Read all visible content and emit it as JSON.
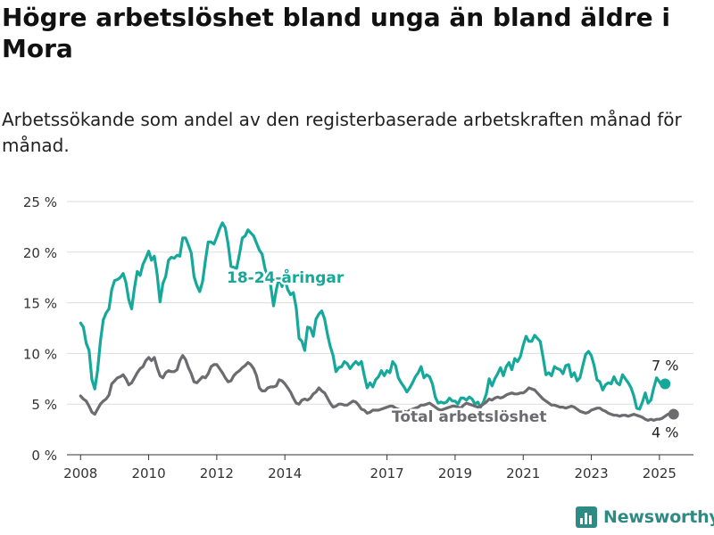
{
  "title": "Högre arbetslöshet bland unga än bland äldre i Mora",
  "subtitle": "Arbetssökande som andel av den registerbaserade arbetskraften månad för månad.",
  "brand": "Newsworthy",
  "colors": {
    "youth": "#16a89a",
    "total": "#6b6b70",
    "grid": "#dddddd",
    "brand": "#2e8b84"
  },
  "chart_data": {
    "type": "line",
    "x_start": "2008-01",
    "x_step": "month",
    "ylim": [
      0,
      25
    ],
    "yticks": [
      0,
      5,
      10,
      15,
      20,
      25
    ],
    "ytick_labels": [
      "0 %",
      "5 %",
      "10 %",
      "15 %",
      "20 %",
      "25 %"
    ],
    "xticks": [
      2008,
      2010,
      2012,
      2014,
      2017,
      2019,
      2021,
      2023,
      2025
    ],
    "xtick_labels": [
      "2008",
      "2010",
      "2012",
      "2014",
      "2017",
      "2019",
      "2021",
      "2023",
      "2025"
    ],
    "grid": true,
    "series": [
      {
        "name": "18-24-åringar",
        "end_label": "7 %",
        "values": [
          13,
          12.6,
          11,
          10.3,
          7.4,
          6.5,
          8.3,
          11.2,
          13.3,
          14,
          14.4,
          16.3,
          17.2,
          17.3,
          17.5,
          17.9,
          17,
          15.3,
          14.4,
          16.5,
          18.1,
          17.7,
          18.8,
          19.4,
          20.1,
          19.2,
          19.6,
          17.8,
          15.1,
          16.9,
          17.6,
          19.2,
          19.5,
          19.4,
          19.7,
          19.6,
          21.4,
          21.4,
          20.7,
          19.9,
          17.6,
          16.7,
          16.1,
          17.1,
          19.2,
          21,
          21,
          20.8,
          21.5,
          22.3,
          22.9,
          22.4,
          20.8,
          18.6,
          18.5,
          18.4,
          19.8,
          21.4,
          21.6,
          22.2,
          21.9,
          21.6,
          20.9,
          20.2,
          19.8,
          18.4,
          17.4,
          16.7,
          14.7,
          16.3,
          17.5,
          16.6,
          17.3,
          16.3,
          15.8,
          16,
          14.5,
          11.5,
          11.2,
          10.3,
          12.6,
          12.5,
          11.7,
          13.4,
          13.9,
          14.2,
          13.4,
          11.9,
          10.7,
          9.8,
          8.2,
          8.6,
          8.7,
          9.2,
          9,
          8.5,
          8.9,
          9.2,
          8.9,
          9.2,
          7.8,
          6.6,
          7.1,
          6.7,
          7.4,
          7.7,
          8.3,
          7.8,
          8.3,
          8.1,
          9.2,
          8.8,
          7.6,
          7.1,
          6.7,
          6.2,
          6.6,
          7.1,
          7.7,
          8.1,
          8.7,
          7.6,
          7.9,
          7.7,
          7,
          5.7,
          5.1,
          5.2,
          5.1,
          5.2,
          5.6,
          5.3,
          5.3,
          5,
          5.6,
          5.6,
          5.4,
          5.7,
          5.5,
          5,
          5.2,
          4.7,
          5.2,
          6,
          7.5,
          6.8,
          7.5,
          8,
          8.6,
          7.8,
          8.7,
          9.1,
          8.4,
          9.5,
          9.2,
          9.7,
          10.8,
          11.7,
          11.2,
          11.2,
          11.8,
          11.5,
          11.2,
          9.6,
          7.9,
          8.1,
          7.8,
          8.7,
          8.5,
          8.4,
          8,
          8.8,
          8.9,
          7.7,
          8.1,
          7.3,
          7.6,
          8.8,
          9.9,
          10.2,
          9.8,
          8.8,
          7.4,
          7.2,
          6.4,
          6.9,
          7.1,
          7,
          7.7,
          7.1,
          6.9,
          7.9,
          7.5,
          7.1,
          6.6,
          5.8,
          4.6,
          4.5,
          5.2,
          6.1,
          5.1,
          5.4,
          6.6,
          7.6,
          7.2,
          6.8,
          7
        ]
      },
      {
        "name": "Total arbetslöshet",
        "end_label": "4 %",
        "values": [
          5.8,
          5.5,
          5.3,
          4.8,
          4.2,
          4,
          4.5,
          5,
          5.3,
          5.5,
          5.9,
          7,
          7.3,
          7.6,
          7.7,
          7.9,
          7.5,
          6.9,
          7.1,
          7.6,
          8.1,
          8.5,
          8.7,
          9.3,
          9.6,
          9.3,
          9.6,
          8.6,
          7.8,
          7.6,
          8.1,
          8.3,
          8.2,
          8.2,
          8.4,
          9.3,
          9.8,
          9.4,
          8.6,
          8,
          7.2,
          7.1,
          7.4,
          7.7,
          7.6,
          8,
          8.7,
          8.9,
          8.9,
          8.5,
          8.1,
          7.6,
          7.2,
          7.3,
          7.8,
          8.1,
          8.3,
          8.6,
          8.8,
          9.1,
          8.9,
          8.5,
          7.8,
          6.6,
          6.3,
          6.3,
          6.6,
          6.7,
          6.7,
          6.8,
          7.4,
          7.3,
          7,
          6.6,
          6.2,
          5.6,
          5.1,
          5,
          5.4,
          5.5,
          5.4,
          5.6,
          6,
          6.2,
          6.6,
          6.3,
          6.1,
          5.6,
          5.1,
          4.7,
          4.8,
          5,
          5,
          4.9,
          4.9,
          5.1,
          5.3,
          5.2,
          4.9,
          4.5,
          4.4,
          4.1,
          4.2,
          4.4,
          4.4,
          4.4,
          4.5,
          4.6,
          4.7,
          4.8,
          4.8,
          4.6,
          4.5,
          4.4,
          4.3,
          4.2,
          4.4,
          4.5,
          4.6,
          4.7,
          4.9,
          4.9,
          5,
          5.1,
          4.9,
          4.7,
          4.5,
          4.4,
          4.5,
          4.6,
          4.7,
          4.8,
          4.8,
          4.7,
          4.6,
          4.9,
          5.1,
          5,
          4.9,
          4.8,
          4.7,
          4.8,
          5,
          5.2,
          5.5,
          5.4,
          5.6,
          5.7,
          5.6,
          5.7,
          5.9,
          6,
          6.1,
          6,
          6,
          6.1,
          6.1,
          6.3,
          6.6,
          6.5,
          6.4,
          6.1,
          5.8,
          5.5,
          5.3,
          5.1,
          4.9,
          4.9,
          4.8,
          4.7,
          4.7,
          4.6,
          4.7,
          4.8,
          4.7,
          4.5,
          4.3,
          4.2,
          4.1,
          4.2,
          4.4,
          4.5,
          4.6,
          4.6,
          4.4,
          4.3,
          4.1,
          4,
          3.9,
          3.9,
          3.8,
          3.9,
          3.9,
          3.8,
          3.9,
          4,
          3.9,
          3.8,
          3.7,
          3.5,
          3.4,
          3.5,
          3.4,
          3.5,
          3.5,
          3.6,
          3.8,
          4,
          4.1,
          4
        ]
      }
    ]
  }
}
